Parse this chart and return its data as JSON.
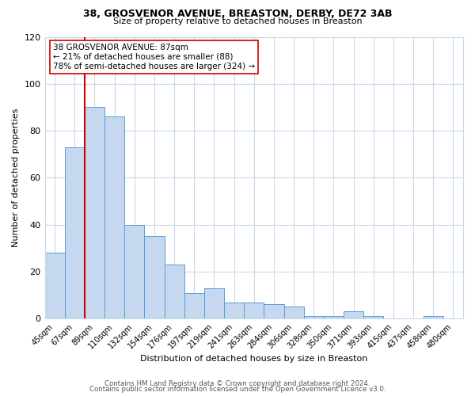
{
  "title1": "38, GROSVENOR AVENUE, BREASTON, DERBY, DE72 3AB",
  "title2": "Size of property relative to detached houses in Breaston",
  "xlabel": "Distribution of detached houses by size in Breaston",
  "ylabel": "Number of detached properties",
  "bar_labels": [
    "45sqm",
    "67sqm",
    "89sqm",
    "110sqm",
    "132sqm",
    "154sqm",
    "176sqm",
    "197sqm",
    "219sqm",
    "241sqm",
    "263sqm",
    "284sqm",
    "306sqm",
    "328sqm",
    "350sqm",
    "371sqm",
    "393sqm",
    "415sqm",
    "437sqm",
    "458sqm",
    "480sqm"
  ],
  "bar_values": [
    28,
    73,
    90,
    86,
    40,
    35,
    23,
    11,
    13,
    7,
    7,
    6,
    5,
    1,
    1,
    3,
    1,
    0,
    0,
    1,
    0
  ],
  "bar_color": "#c5d8f0",
  "bar_edge_color": "#5b9bd5",
  "ylim": [
    0,
    120
  ],
  "yticks": [
    0,
    20,
    40,
    60,
    80,
    100,
    120
  ],
  "vline_x": 1.5,
  "vline_color": "#cc0000",
  "annotation_title": "38 GROSVENOR AVENUE: 87sqm",
  "annotation_line1": "← 21% of detached houses are smaller (88)",
  "annotation_line2": "78% of semi-detached houses are larger (324) →",
  "annotation_box_color": "#ffffff",
  "annotation_box_edge_color": "#cc0000",
  "footer1": "Contains HM Land Registry data © Crown copyright and database right 2024.",
  "footer2": "Contains public sector information licensed under the Open Government Licence v3.0.",
  "bg_color": "#ffffff",
  "grid_color": "#c8d8ea"
}
